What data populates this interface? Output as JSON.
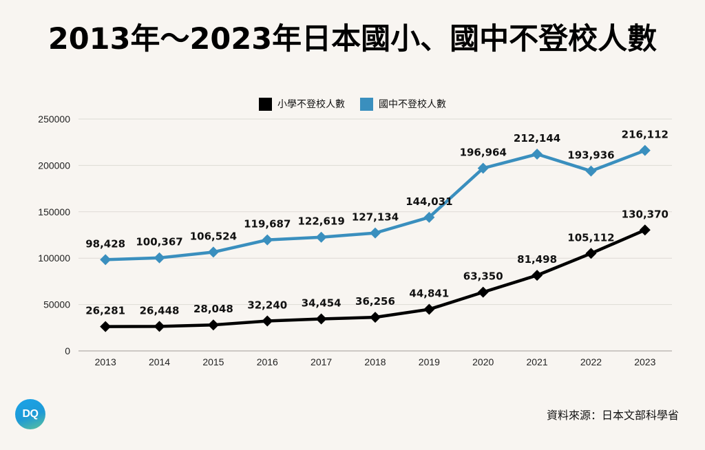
{
  "title": "2013年～2023年日本國小、國中不登校人數",
  "source": "資料來源：日本文部科學省",
  "logo_text": "DQ",
  "chart_data": {
    "type": "line",
    "title": "2013年～2023年日本國小、國中不登校人數",
    "xlabel": "",
    "ylabel": "",
    "x": [
      "2013",
      "2014",
      "2015",
      "2016",
      "2017",
      "2018",
      "2019",
      "2020",
      "2021",
      "2022",
      "2023"
    ],
    "ylim": [
      0,
      250000
    ],
    "yticks": [
      "0",
      "50000",
      "100000",
      "150000",
      "200000",
      "250000"
    ],
    "grid": true,
    "legend_position": "top-center",
    "series": [
      {
        "name": "小學不登校人數",
        "color": "#000000",
        "marker": "diamond",
        "values": [
          26281,
          26448,
          28048,
          32240,
          34454,
          36256,
          44841,
          63350,
          81498,
          105112,
          130370
        ],
        "labels": [
          "26,281",
          "26,448",
          "28,048",
          "32,240",
          "34,454",
          "36,256",
          "44,841",
          "63,350",
          "81,498",
          "105,112",
          "130,370"
        ]
      },
      {
        "name": "國中不登校人數",
        "color": "#3a8fbe",
        "marker": "diamond",
        "values": [
          98428,
          100367,
          106524,
          119687,
          122619,
          127134,
          144031,
          196964,
          212144,
          193936,
          216112
        ],
        "labels": [
          "98,428",
          "100,367",
          "106,524",
          "119,687",
          "122,619",
          "127,134",
          "144,031",
          "196,964",
          "212,144",
          "193,936",
          "216,112"
        ]
      }
    ]
  }
}
